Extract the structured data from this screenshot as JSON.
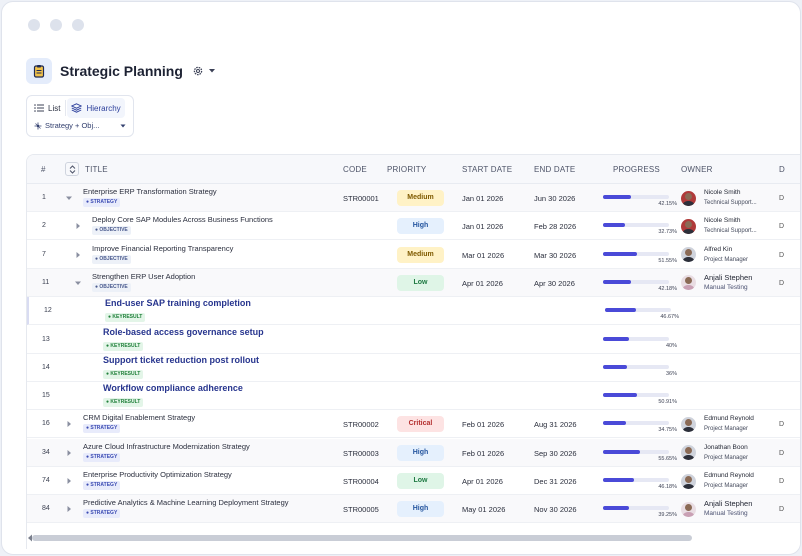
{
  "header": {
    "title": "Strategic Planning"
  },
  "view_toggle": {
    "list_label": "List",
    "hierarchy_label": "Hierarchy",
    "active": "hierarchy",
    "filter_label": "Strategy + Obj..."
  },
  "columns": {
    "num": "#",
    "title": "TITLE",
    "code": "CODE",
    "priority": "PRIORITY",
    "start": "START DATE",
    "end": "END DATE",
    "progress": "PROGRESS",
    "owner": "OWNER",
    "cut": "D"
  },
  "rows": [
    {
      "num": "1",
      "title": "Enterprise ERP Transformation Strategy",
      "tag": "STRATEGY",
      "code": "STR00001",
      "priority": "Medium",
      "start": "Jan 01 2026",
      "end": "Jun 30 2026",
      "progress": "42.15%",
      "progress_value": 42.15,
      "owner_name": "Nicole Smith",
      "owner_role": "Technical Support...",
      "level": 0,
      "expanded": true
    },
    {
      "num": "2",
      "title": "Deploy Core SAP Modules Across Business Functions",
      "tag": "OBJECTIVE",
      "code": "",
      "priority": "High",
      "start": "Jan 01 2026",
      "end": "Feb 28 2026",
      "progress": "32.73%",
      "progress_value": 32.73,
      "owner_name": "Nicole Smith",
      "owner_role": "Technical Support...",
      "level": 1,
      "expanded": false
    },
    {
      "num": "7",
      "title": "Improve Financial Reporting Transparency",
      "tag": "OBJECTIVE",
      "code": "",
      "priority": "Medium",
      "start": "Mar 01 2026",
      "end": "Mar 30 2026",
      "progress": "51.55%",
      "progress_value": 51.55,
      "owner_name": "Alfred Kin",
      "owner_role": "Project Manager",
      "level": 1,
      "expanded": false
    },
    {
      "num": "11",
      "title": "Strengthen ERP User Adoption",
      "tag": "OBJECTIVE",
      "code": "",
      "priority": "Low",
      "start": "Apr 01 2026",
      "end": "Apr 30 2026",
      "progress": "42.18%",
      "progress_value": 42.18,
      "owner_name": "Anjali Stephen",
      "owner_role": "Manual Testing",
      "level": 1,
      "expanded": true
    },
    {
      "num": "12",
      "title": "End-user SAP training completion",
      "tag": "KEYRESULT",
      "progress": "46.67%",
      "progress_value": 46.67,
      "level": 2
    },
    {
      "num": "13",
      "title": "Role-based access governance setup",
      "tag": "KEYRESULT",
      "progress": "40%",
      "progress_value": 40,
      "level": 2
    },
    {
      "num": "14",
      "title": "Support ticket reduction post rollout",
      "tag": "KEYRESULT",
      "progress": "36%",
      "progress_value": 36,
      "level": 2
    },
    {
      "num": "15",
      "title": "Workflow compliance adherence",
      "tag": "KEYRESULT",
      "progress": "50.91%",
      "progress_value": 50.91,
      "level": 2
    },
    {
      "num": "16",
      "title": "CRM Digital Enablement Strategy",
      "tag": "STRATEGY",
      "code": "STR00002",
      "priority": "Critical",
      "start": "Feb 01 2026",
      "end": "Aug 31 2026",
      "progress": "34.75%",
      "progress_value": 34.75,
      "owner_name": "Edmund Reynold",
      "owner_role": "Project Manager",
      "level": 0,
      "expanded": false
    },
    {
      "num": "34",
      "title": "Azure Cloud Infrastructure Modernization Strategy",
      "tag": "STRATEGY",
      "code": "STR00003",
      "priority": "High",
      "start": "Feb 01 2026",
      "end": "Sep 30 2026",
      "progress": "55.65%",
      "progress_value": 55.65,
      "owner_name": "Jonathan Boon",
      "owner_role": "Project Manager",
      "level": 0,
      "expanded": false
    },
    {
      "num": "74",
      "title": "Enterprise Productivity Optimization Strategy",
      "tag": "STRATEGY",
      "code": "STR00004",
      "priority": "Low",
      "start": "Apr 01 2026",
      "end": "Dec 31 2026",
      "progress": "46.18%",
      "progress_value": 46.18,
      "owner_name": "Edmund Reynold",
      "owner_role": "Project Manager",
      "level": 0,
      "expanded": false
    },
    {
      "num": "84",
      "title": "Predictive Analytics & Machine Learning Deployment Strategy",
      "tag": "STRATEGY",
      "code": "STR00005",
      "priority": "High",
      "start": "May 01 2026",
      "end": "Nov 30 2026",
      "progress": "39.25%",
      "progress_value": 39.25,
      "owner_name": "Anjali Stephen",
      "owner_role": "Manual Testing",
      "level": 0,
      "expanded": false
    }
  ],
  "colors": {
    "progress": "#4a4ad8",
    "accent": "#2b3e9b",
    "medium_bg": "#fff2c6",
    "high_bg": "#e5f0fd",
    "low_bg": "#dff5e7",
    "critical_bg": "#fde3e3"
  }
}
